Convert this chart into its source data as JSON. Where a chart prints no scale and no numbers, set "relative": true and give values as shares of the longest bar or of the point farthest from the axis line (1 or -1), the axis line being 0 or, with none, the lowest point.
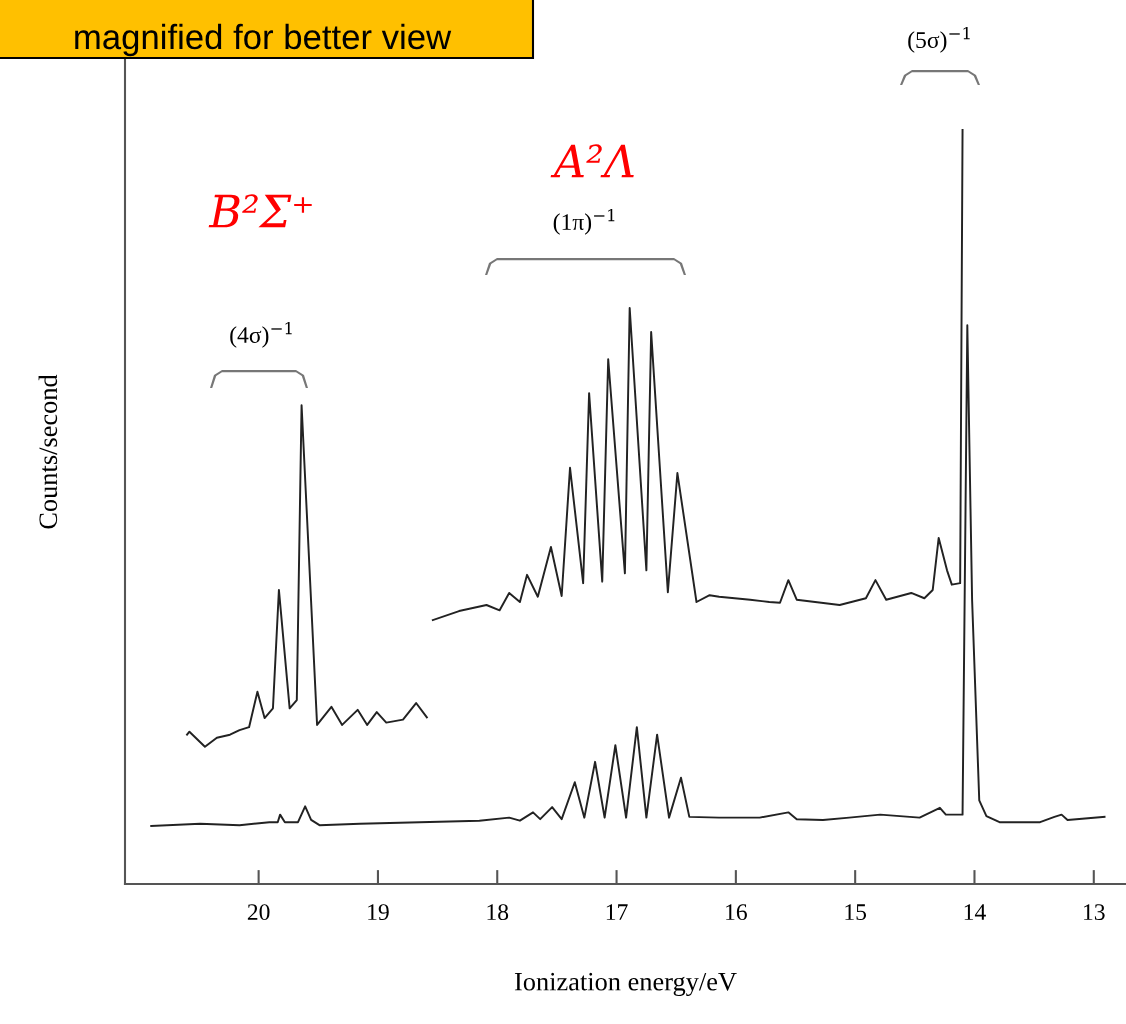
{
  "chart_data": {
    "type": "line",
    "xlabel": "Ionization energy/eV",
    "ylabel": "Counts/second",
    "relative": true,
    "xlim": [
      21.12,
      12.73
    ],
    "xticks": [
      20,
      19,
      18,
      17,
      16,
      15,
      14,
      13
    ],
    "tick_labels": "x",
    "grid": false,
    "legend": false,
    "marker": "none",
    "line_style": "solid",
    "annotations": [
      "magnified for better view",
      "(5σ)$^{−1}$",
      "(1π)$^{−1}$",
      "(4σ)$^{−1}$",
      "A²Λ",
      "B²Σ⁺"
    ],
    "series": [
      {
        "color": "#222222",
        "x": [
          20.9,
          20.49,
          20.16,
          19.91,
          19.84,
          19.82,
          19.78,
          19.67,
          19.61,
          19.56,
          19.49,
          19.15,
          18.65,
          18.15,
          17.9,
          17.81,
          17.7,
          17.64,
          17.54,
          17.46,
          17.35,
          17.27,
          17.18,
          17.1,
          17.01,
          16.92,
          16.83,
          16.75,
          16.66,
          16.56,
          16.46,
          16.39,
          16.14,
          15.8,
          15.56,
          15.49,
          15.27,
          15.05,
          14.79,
          14.46,
          14.29,
          14.24,
          14.1,
          14.06,
          14.02,
          13.96,
          13.9,
          13.79,
          13.45,
          13.33,
          13.27,
          13.22,
          12.91
        ],
        "values": [
          0.077,
          0.08,
          0.078,
          0.082,
          0.082,
          0.092,
          0.082,
          0.082,
          0.103,
          0.085,
          0.078,
          0.08,
          0.082,
          0.084,
          0.088,
          0.084,
          0.095,
          0.086,
          0.102,
          0.086,
          0.135,
          0.088,
          0.162,
          0.088,
          0.184,
          0.088,
          0.208,
          0.088,
          0.198,
          0.088,
          0.141,
          0.089,
          0.088,
          0.088,
          0.095,
          0.086,
          0.085,
          0.088,
          0.092,
          0.088,
          0.101,
          0.092,
          0.092,
          0.741,
          0.377,
          0.111,
          0.09,
          0.082,
          0.082,
          0.089,
          0.092,
          0.085,
          0.089
        ]
      },
      {
        "color": "#222222",
        "x": [
          20.6,
          20.58,
          20.45,
          20.35,
          20.24,
          20.16,
          20.08,
          20.01,
          19.95,
          19.88,
          19.83,
          19.74,
          19.68,
          19.64,
          19.51,
          19.39,
          19.3,
          19.17,
          19.09,
          19.01,
          18.93,
          18.79,
          18.68,
          18.59
        ],
        "values": [
          0.198,
          0.202,
          0.182,
          0.194,
          0.198,
          0.204,
          0.208,
          0.255,
          0.22,
          0.233,
          0.39,
          0.233,
          0.244,
          0.635,
          0.211,
          0.235,
          0.211,
          0.231,
          0.211,
          0.228,
          0.214,
          0.218,
          0.24,
          0.221
        ]
      },
      {
        "color": "#222222",
        "x": [
          18.54,
          18.32,
          18.09,
          17.98,
          17.9,
          17.81,
          17.75,
          17.66,
          17.55,
          17.46,
          17.39,
          17.28,
          17.23,
          17.12,
          17.07,
          16.93,
          16.89,
          16.75,
          16.71,
          16.57,
          16.49,
          16.33,
          16.22,
          16.14,
          15.88,
          15.72,
          15.63,
          15.56,
          15.49,
          15.13,
          14.91,
          14.83,
          14.74,
          14.53,
          14.42,
          14.35,
          14.3,
          14.23,
          14.19,
          14.12,
          14.1
        ],
        "values": [
          0.35,
          0.362,
          0.37,
          0.363,
          0.386,
          0.374,
          0.41,
          0.381,
          0.447,
          0.382,
          0.552,
          0.399,
          0.651,
          0.401,
          0.696,
          0.412,
          0.764,
          0.416,
          0.732,
          0.387,
          0.545,
          0.374,
          0.383,
          0.381,
          0.377,
          0.374,
          0.373,
          0.403,
          0.377,
          0.37,
          0.379,
          0.403,
          0.377,
          0.386,
          0.379,
          0.39,
          0.459,
          0.416,
          0.397,
          0.399,
          1.0
        ]
      }
    ]
  }
}
